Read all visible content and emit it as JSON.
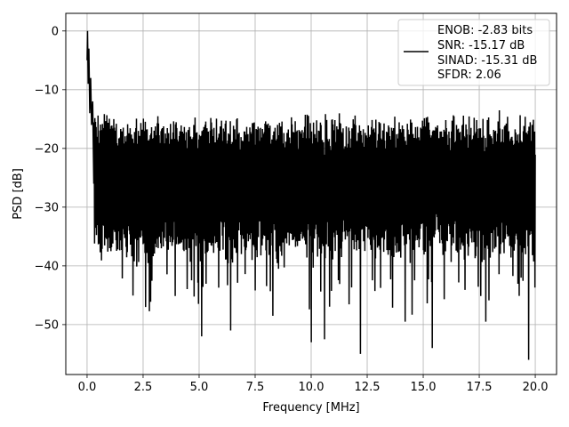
{
  "chart_data": {
    "type": "line",
    "xlabel": "Frequency [MHz]",
    "ylabel": "PSD [dB]",
    "xlim": [
      -0.95,
      20.95
    ],
    "ylim": [
      -58.5,
      3.0
    ],
    "xticks": [
      0.0,
      2.5,
      5.0,
      7.5,
      10.0,
      12.5,
      15.0,
      17.5,
      20.0
    ],
    "xtick_labels": [
      "0.0",
      "2.5",
      "5.0",
      "7.5",
      "10.0",
      "12.5",
      "15.0",
      "17.5",
      "20.0"
    ],
    "yticks": [
      0,
      -10,
      -20,
      -30,
      -40,
      -50
    ],
    "ytick_labels": [
      "0",
      "−10",
      "−20",
      "−30",
      "−40",
      "−50"
    ],
    "grid": true,
    "legend_position": "top-right",
    "legend_entries": [
      "ENOB: -2.83 bits",
      "SNR: -15.17 dB",
      "SINAD: -15.31 dB",
      "SFDR: 2.06"
    ],
    "line_color": "#000000",
    "series": [
      {
        "x_start": 0.0,
        "x_end": 20.0,
        "noise_floor_upper_db": -16,
        "noise_floor_lower_db": -36,
        "peak": [
          {
            "x": 0.0,
            "y": -5.0
          },
          {
            "x": 0.02,
            "y": 0.0
          },
          {
            "x": 0.05,
            "y": -9.0
          },
          {
            "x": 0.08,
            "y": -3.0
          },
          {
            "x": 0.12,
            "y": -14.0
          },
          {
            "x": 0.16,
            "y": -8.0
          },
          {
            "x": 0.2,
            "y": -16.0
          },
          {
            "x": 0.25,
            "y": -12.0
          },
          {
            "x": 0.3,
            "y": -26.0
          }
        ],
        "deep_dips": [
          {
            "x": 2.6,
            "y": -47.0
          },
          {
            "x": 5.1,
            "y": -52.0
          },
          {
            "x": 6.4,
            "y": -51.0
          },
          {
            "x": 8.3,
            "y": -48.5
          },
          {
            "x": 10.0,
            "y": -53.0
          },
          {
            "x": 10.6,
            "y": -52.5
          },
          {
            "x": 12.2,
            "y": -55.0
          },
          {
            "x": 14.2,
            "y": -49.5
          },
          {
            "x": 15.4,
            "y": -54.0
          },
          {
            "x": 17.8,
            "y": -49.5
          },
          {
            "x": 19.7,
            "y": -56.0
          }
        ]
      }
    ]
  }
}
